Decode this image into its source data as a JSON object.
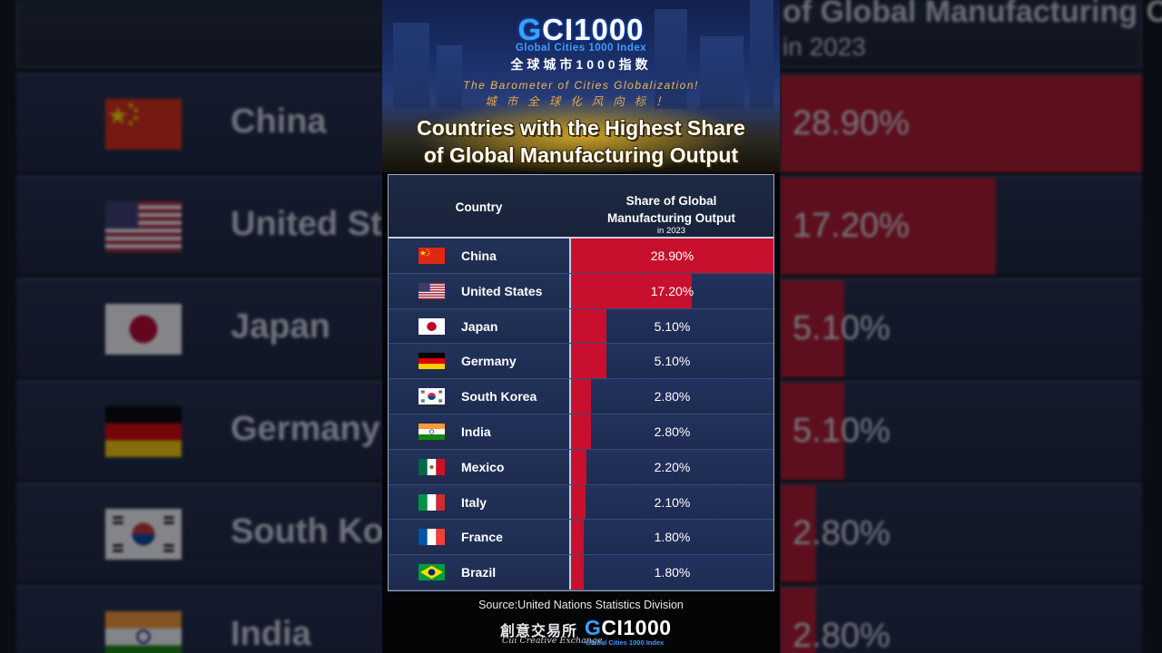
{
  "branding": {
    "logo_g": "G",
    "logo_rest": "CI1000",
    "logo_subtitle_en": "Global Cities 1000 Index",
    "logo_subtitle_cn": "全球城市1000指数",
    "tagline_en": "The Barometer of Cities Globalization!",
    "tagline_cn": "城市全球化风向标！",
    "footer_cn": "創意交易所",
    "footer_en": "Cui Creative Exchange",
    "footer_gci_g": "G",
    "footer_gci_rest": "CI1000",
    "footer_gci_sub": "Global Cities 1000 Index"
  },
  "source": "Source:United Nations Statistics Division",
  "colors": {
    "bar": "#c8102e",
    "row_bg": "#1d2b4e",
    "title_glow": "#ffc828"
  },
  "table": {
    "header_country": "Country",
    "header_share_line1": "Share of Global",
    "header_share_line2": "Manufacturing Output",
    "header_share_sub": "in 2023"
  },
  "chart_data": {
    "type": "bar",
    "title_line1": "Countries with the Highest Share",
    "title_line2": "of Global Manufacturing Output",
    "categories": [
      "China",
      "United States",
      "Japan",
      "Germany",
      "South Korea",
      "India",
      "Mexico",
      "Italy",
      "France",
      "Brazil"
    ],
    "flags": [
      "flag-china-icon",
      "flag-united-states-icon",
      "flag-japan-icon",
      "flag-germany-icon",
      "flag-south-korea-icon",
      "flag-india-icon",
      "flag-mexico-icon",
      "flag-italy-icon",
      "flag-france-icon",
      "flag-brazil-icon"
    ],
    "values": [
      28.9,
      17.2,
      5.1,
      5.1,
      2.8,
      2.8,
      2.2,
      2.1,
      1.8,
      1.8
    ],
    "labels": [
      "28.90%",
      "17.20%",
      "5.10%",
      "5.10%",
      "2.80%",
      "2.80%",
      "2.20%",
      "2.10%",
      "1.80%",
      "1.80%"
    ],
    "ylabel": "Share of Global Manufacturing Output",
    "unit": "%",
    "xlim": [
      0,
      28.9
    ],
    "orientation": "horizontal"
  }
}
